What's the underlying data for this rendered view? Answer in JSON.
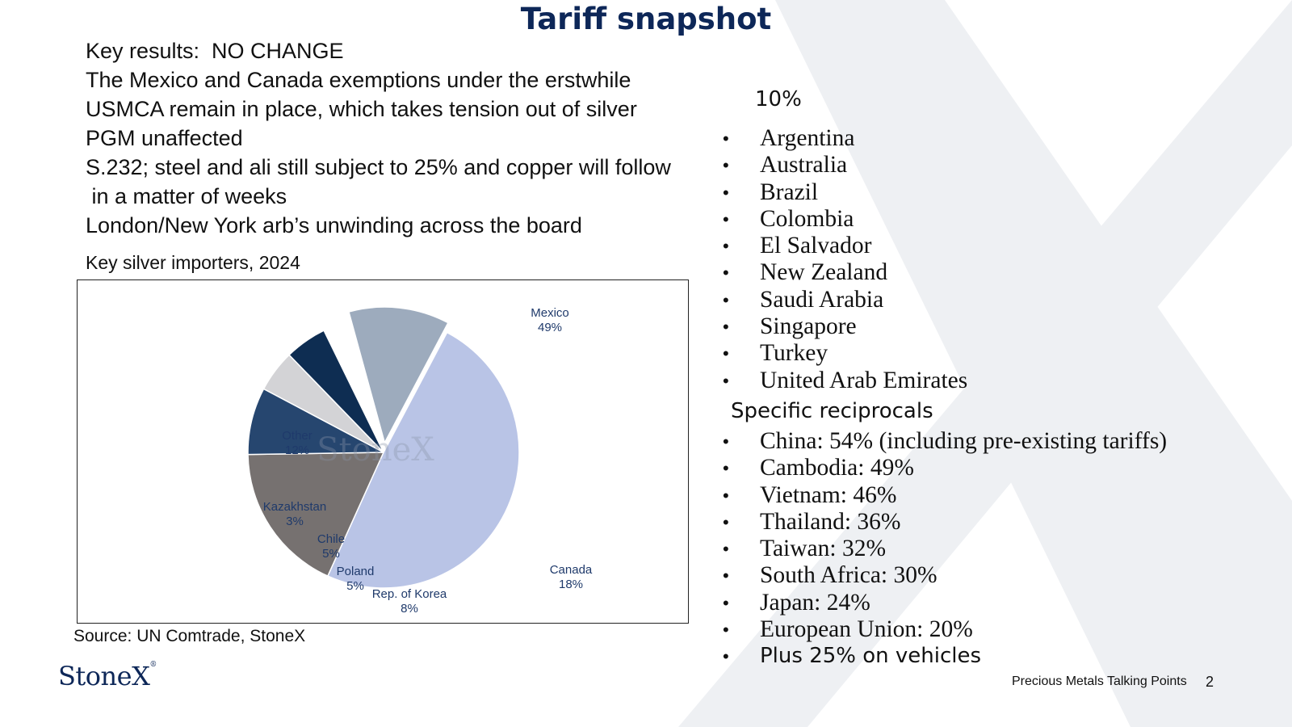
{
  "slide": {
    "title": "Tariff snapshot",
    "key_results": [
      "Key results:  NO CHANGE",
      "The Mexico and Canada exemptions under the erstwhile",
      "USMCA remain in place, which takes tension out of silver",
      "PGM unaffected",
      "S.232; steel and ali still subject to 25% and copper will follow",
      " in a matter of weeks",
      "London/New York arb’s unwinding across the board"
    ],
    "chart_heading": "Key silver importers, 2024",
    "source": "Source: UN Comtrade, StoneX",
    "logo_text": "StoneX",
    "footer_label": "Precious Metals Talking Points",
    "page_number": "2"
  },
  "right_panel": {
    "baseline_heading": "10%",
    "baseline_countries": [
      "Argentina",
      "Australia",
      "Brazil",
      "Colombia",
      "El Salvador",
      "New Zealand",
      "Saudi Arabia",
      "Singapore",
      "Turkey",
      "United Arab Emirates"
    ],
    "specific_heading": "Specific reciprocals",
    "specific_items": [
      "China: 54% (including pre-existing tariffs)",
      "Cambodia: 49%",
      "Vietnam: 46%",
      "Thailand: 36%",
      "Taiwan: 32%",
      "South Africa: 30%",
      "Japan: 24%",
      "European Union: 20%",
      "Plus 25% on vehicles"
    ]
  },
  "chart_data": {
    "type": "pie",
    "title": "Key silver importers, 2024",
    "watermark": "StoneX",
    "slices": [
      {
        "label": "Mexico",
        "value": 49,
        "value_label": "49%",
        "color": "#b9c4e6"
      },
      {
        "label": "Canada",
        "value": 18,
        "value_label": "18%",
        "color": "#767170"
      },
      {
        "label": "Rep. of Korea",
        "value": 8,
        "value_label": "8%",
        "color": "#26466f"
      },
      {
        "label": "Poland",
        "value": 5,
        "value_label": "5%",
        "color": "#d3d3d6"
      },
      {
        "label": "Chile",
        "value": 5,
        "value_label": "5%",
        "color": "#0e2d52"
      },
      {
        "label": "Kazakhstan",
        "value": 3,
        "value_label": "3%",
        "color": "#ffffff",
        "exploded": true
      },
      {
        "label": "Other",
        "value": 12,
        "value_label": "12%",
        "color": "#9dabbd",
        "exploded": true
      }
    ],
    "label_color": "#1f3a6b"
  }
}
